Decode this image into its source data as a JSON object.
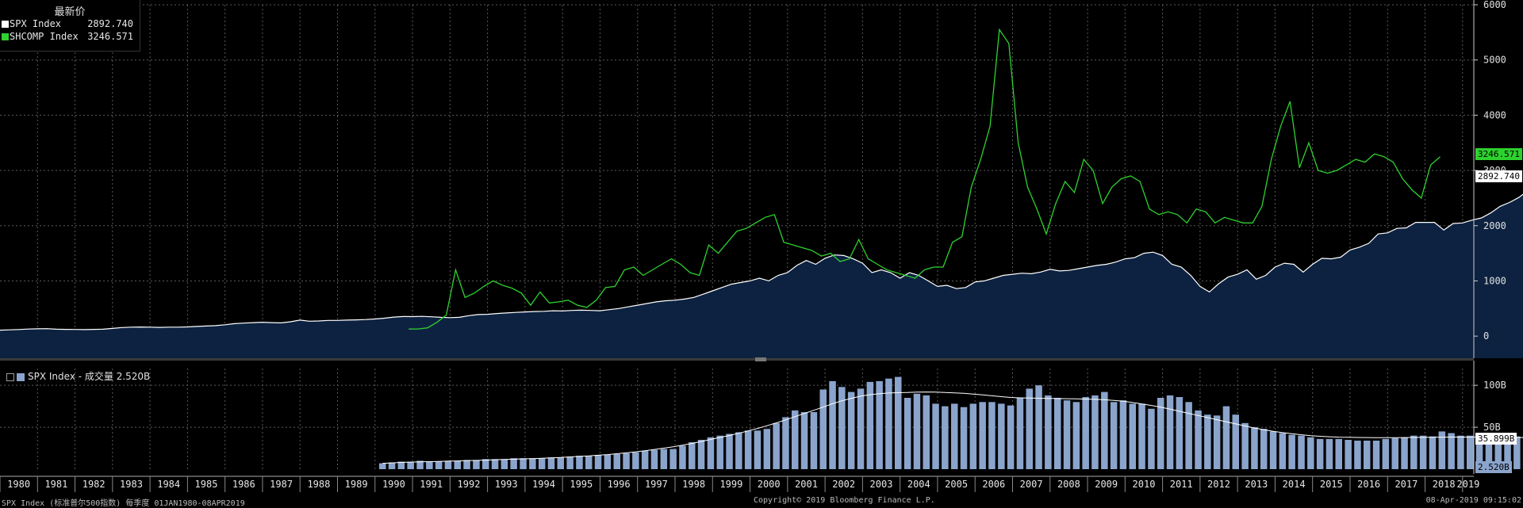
{
  "legend": {
    "header": "最新价",
    "items": [
      {
        "name": "SPX Index",
        "value": "2892.740",
        "color": "#ffffff"
      },
      {
        "name": "SHCOMP Index",
        "value": "3246.571",
        "color": "#2ed12e"
      }
    ]
  },
  "volume_legend": {
    "label": "SPX Index - 成交量 2.520B",
    "color": "#8aa4cc"
  },
  "price_tags": {
    "shcomp": {
      "text": "3246.571",
      "bg": "#2ed12e",
      "fg": "#000000"
    },
    "spx": {
      "text": "2892.740",
      "bg": "#ffffff",
      "fg": "#000000"
    },
    "vol_ma": {
      "text": "35.899B",
      "bg": "#ffffff",
      "fg": "#000000"
    },
    "vol_last": {
      "text": "2.520B",
      "bg": "#8aa4cc",
      "fg": "#000000"
    }
  },
  "footer": {
    "left": "SPX Index (标准普尔500指数) 每季度 01JAN1980-08APR2019",
    "center": "Copyright© 2019 Bloomberg Finance L.P.",
    "right": "08-Apr-2019 09:15:02"
  },
  "colors": {
    "background": "#000000",
    "spx_area": "#0d2240",
    "grid": "#5a5a5a",
    "shcomp": "#2ed12e",
    "volume_bar": "#8aa4cc"
  },
  "chart_data": [
    {
      "type": "area",
      "ylim": [
        -400,
        6000
      ],
      "yticks": [
        "6000",
        "5000",
        "4000",
        "3000",
        "2000",
        "1000",
        "0"
      ],
      "x_range": [
        1980.0,
        2019.3
      ],
      "series": [
        {
          "name": "SPX Index",
          "x_start": 1980.0,
          "step": 0.25,
          "values": [
            108,
            114,
            120,
            128,
            132,
            135,
            125,
            123,
            121,
            118,
            122,
            125,
            140,
            155,
            162,
            165,
            163,
            158,
            162,
            163,
            167,
            175,
            182,
            190,
            205,
            225,
            235,
            245,
            252,
            244,
            240,
            260,
            290,
            270,
            275,
            285,
            285,
            290,
            295,
            300,
            310,
            325,
            345,
            355,
            353,
            358,
            350,
            340,
            335,
            340,
            370,
            390,
            395,
            410,
            420,
            430,
            438,
            445,
            450,
            460,
            455,
            465,
            470,
            465,
            459,
            480,
            500,
            530,
            560,
            590,
            620,
            640,
            650,
            670,
            700,
            760,
            820,
            880,
            940,
            970,
            1000,
            1050,
            1000,
            1100,
            1150,
            1280,
            1370,
            1300,
            1410,
            1470,
            1460,
            1400,
            1320,
            1150,
            1200,
            1150,
            1050,
            1150,
            1100,
            1000,
            900,
            920,
            860,
            880,
            980,
            1000,
            1050,
            1100,
            1120,
            1140,
            1130,
            1160,
            1210,
            1180,
            1190,
            1220,
            1250,
            1280,
            1300,
            1340,
            1400,
            1420,
            1500,
            1520,
            1460,
            1300,
            1250,
            1100,
            900,
            800,
            950,
            1070,
            1120,
            1200,
            1030,
            1100,
            1250,
            1320,
            1300,
            1160,
            1300,
            1410,
            1400,
            1430,
            1560,
            1610,
            1680,
            1850,
            1870,
            1950,
            1960,
            2060,
            2060,
            2060,
            1920,
            2040,
            2050,
            2100,
            2140,
            2230,
            2350,
            2420,
            2510,
            2640,
            2640,
            2720,
            2910,
            2500,
            2840,
            2892.74
          ]
        },
        {
          "name": "SHCOMP Index",
          "x_start": 1990.9,
          "step": 0.25,
          "values": [
            128,
            130,
            150,
            250,
            380,
            1200,
            700,
            780,
            900,
            1000,
            920,
            870,
            780,
            560,
            800,
            600,
            620,
            650,
            560,
            520,
            650,
            880,
            900,
            1200,
            1250,
            1100,
            1200,
            1300,
            1400,
            1300,
            1150,
            1100,
            1650,
            1500,
            1700,
            1900,
            1950,
            2050,
            2150,
            2200,
            1700,
            1650,
            1600,
            1550,
            1450,
            1500,
            1350,
            1400,
            1750,
            1400,
            1300,
            1200,
            1150,
            1100,
            1050,
            1200,
            1250,
            1250,
            1700,
            1800,
            2700,
            3200,
            3800,
            5550,
            5300,
            3500,
            2700,
            2300,
            1850,
            2400,
            2800,
            2600,
            3200,
            3000,
            2400,
            2700,
            2850,
            2900,
            2800,
            2300,
            2200,
            2250,
            2200,
            2050,
            2300,
            2250,
            2050,
            2150,
            2100,
            2050,
            2050,
            2350,
            3200,
            3800,
            4250,
            3050,
            3500,
            3000,
            2950,
            3000,
            3100,
            3200,
            3150,
            3300,
            3250,
            3150,
            2850,
            2650,
            2500,
            3100,
            3246.571
          ]
        }
      ]
    },
    {
      "type": "bar",
      "ylim": [
        0,
        120
      ],
      "yticks": [
        "100B",
        "50B"
      ],
      "series": [
        {
          "name": "SPX Index - 成交量",
          "x_start": 1990.2,
          "step": 0.25,
          "values": [
            7,
            8,
            9,
            9,
            10,
            9,
            9,
            10,
            10,
            11,
            11,
            12,
            12,
            12,
            13,
            13,
            13,
            13,
            14,
            14,
            15,
            16,
            16,
            17,
            17,
            18,
            19,
            20,
            22,
            23,
            24,
            24,
            28,
            32,
            35,
            38,
            40,
            42,
            44,
            46,
            46,
            48,
            55,
            62,
            70,
            68,
            68,
            95,
            105,
            98,
            92,
            96,
            104,
            105,
            108,
            110,
            85,
            90,
            88,
            78,
            75,
            78,
            74,
            78,
            80,
            80,
            78,
            76,
            85,
            96,
            100,
            88,
            85,
            82,
            80,
            86,
            88,
            92,
            80,
            82,
            78,
            78,
            72,
            85,
            88,
            86,
            80,
            70,
            65,
            64,
            75,
            65,
            55,
            50,
            48,
            45,
            43,
            41,
            40,
            38,
            36,
            36,
            36,
            35,
            34,
            34,
            34,
            36,
            37,
            38,
            40,
            40,
            39,
            45,
            43,
            40,
            40,
            40,
            39,
            39,
            39,
            39,
            40,
            39,
            40,
            37,
            44,
            40,
            2.52
          ]
        },
        {
          "name": "MA",
          "x_start": 1990.2,
          "step": 0.25,
          "values": [
            7,
            7.5,
            8,
            8.4,
            8.8,
            9,
            9.2,
            9.5,
            9.8,
            10.1,
            10.4,
            10.8,
            11.2,
            11.5,
            11.9,
            12.3,
            12.6,
            13,
            13.5,
            14,
            14.6,
            15.2,
            15.8,
            16.6,
            17.4,
            18.4,
            19.5,
            20.7,
            22,
            23.5,
            25,
            26.7,
            28.6,
            30.7,
            33,
            35.4,
            37.8,
            40.2,
            42.8,
            45.6,
            48.6,
            51.8,
            55.2,
            58.8,
            62.6,
            66.4,
            70.2,
            74,
            78,
            81.5,
            84.5,
            87,
            88.8,
            90,
            90.8,
            91.2,
            91.5,
            91.8,
            92,
            91.8,
            91.5,
            91,
            90.5,
            89.5,
            88.5,
            87.5,
            86.5,
            85.5,
            85,
            84.8,
            84.6,
            84.4,
            84.2,
            84,
            83.8,
            83.5,
            83.2,
            82.8,
            82,
            81,
            79.5,
            77.8,
            76,
            74,
            71.5,
            69,
            66.5,
            64,
            61.5,
            59,
            56.5,
            54,
            51.5,
            49,
            47,
            45.2,
            43.6,
            42.2,
            41,
            40,
            39.2,
            38.6,
            38.2,
            38,
            37.8,
            37.7,
            37.6,
            37.6,
            37.6,
            37.7,
            37.8,
            37.9,
            38,
            38.2,
            38.3,
            38.3,
            38.3,
            38.2,
            38.1,
            38,
            37.9,
            37.8,
            37.7,
            37.6,
            37.4,
            37.1,
            36.6,
            36.2,
            35.899
          ]
        }
      ]
    }
  ],
  "xaxis": {
    "labels": [
      "1980",
      "1981",
      "1982",
      "1983",
      "1984",
      "1985",
      "1986",
      "1987",
      "1988",
      "1989",
      "1990",
      "1991",
      "1992",
      "1993",
      "1994",
      "1995",
      "1996",
      "1997",
      "1998",
      "1999",
      "2000",
      "2001",
      "2002",
      "2003",
      "2004",
      "2005",
      "2006",
      "2007",
      "2008",
      "2009",
      "2010",
      "2011",
      "2012",
      "2013",
      "2014",
      "2015",
      "2016",
      "2017",
      "2018",
      "2019"
    ]
  }
}
